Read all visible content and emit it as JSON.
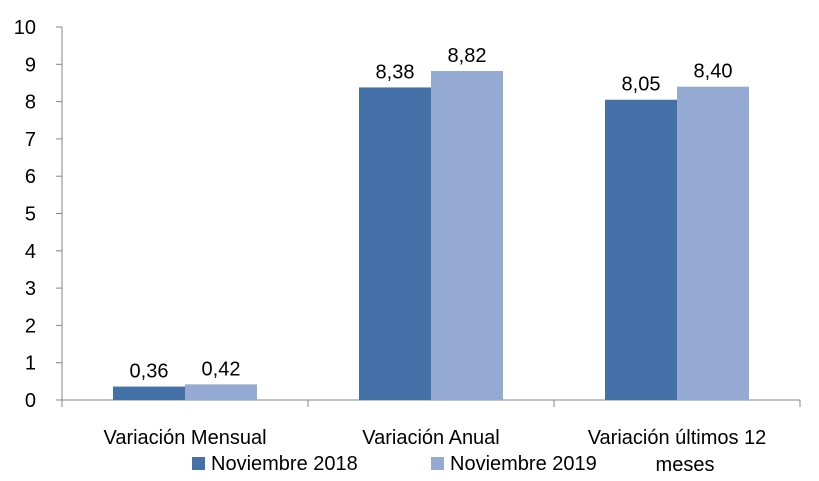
{
  "chart_data": {
    "type": "bar",
    "categories": [
      "Variación Mensual",
      "Variación  Anual",
      "Variación últimos 12 meses"
    ],
    "series": [
      {
        "name": "Noviembre 2018",
        "values": [
          0.36,
          8.38,
          8.05
        ],
        "labels": [
          "0,36",
          "8,38",
          "8,05"
        ],
        "color": "#4472a8"
      },
      {
        "name": "Noviembre 2019",
        "values": [
          0.42,
          8.82,
          8.4
        ],
        "labels": [
          "0,42",
          "8,82",
          "8,40"
        ],
        "color": "#95aad3"
      }
    ],
    "yticks": [
      "0",
      "1",
      "2",
      "3",
      "4",
      "5",
      "6",
      "7",
      "8",
      "9",
      "10"
    ],
    "ylim": [
      0,
      10
    ],
    "grid": false,
    "legend_position": "bottom"
  }
}
